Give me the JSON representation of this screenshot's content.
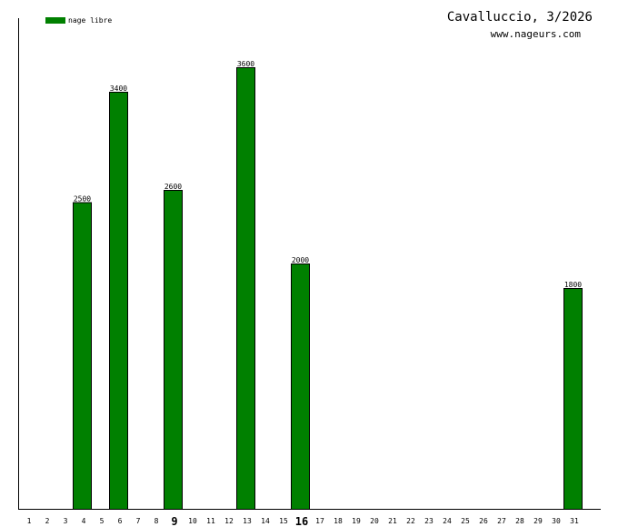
{
  "chart_data": {
    "type": "bar",
    "title": "Cavalluccio, 3/2026",
    "subtitle": "www.nageurs.com",
    "legend": {
      "position": "top-left",
      "entries": [
        {
          "name": "nage libre",
          "color": "#008000"
        }
      ]
    },
    "categories": [
      "1",
      "2",
      "3",
      "4",
      "5",
      "6",
      "7",
      "8",
      "9",
      "10",
      "11",
      "12",
      "13",
      "14",
      "15",
      "16",
      "17",
      "18",
      "19",
      "20",
      "21",
      "22",
      "23",
      "24",
      "25",
      "26",
      "27",
      "28",
      "29",
      "30",
      "31"
    ],
    "emphasized_categories": [
      "9",
      "16"
    ],
    "series": [
      {
        "name": "nage libre",
        "color": "#008000",
        "values": [
          0,
          0,
          0,
          2500,
          0,
          3400,
          0,
          0,
          2600,
          0,
          0,
          0,
          3600,
          0,
          0,
          2000,
          0,
          0,
          0,
          0,
          0,
          0,
          0,
          0,
          0,
          0,
          0,
          0,
          0,
          0,
          1800
        ]
      }
    ],
    "ylim": [
      0,
      4000
    ],
    "grid": false,
    "xlabel": "",
    "ylabel": ""
  }
}
